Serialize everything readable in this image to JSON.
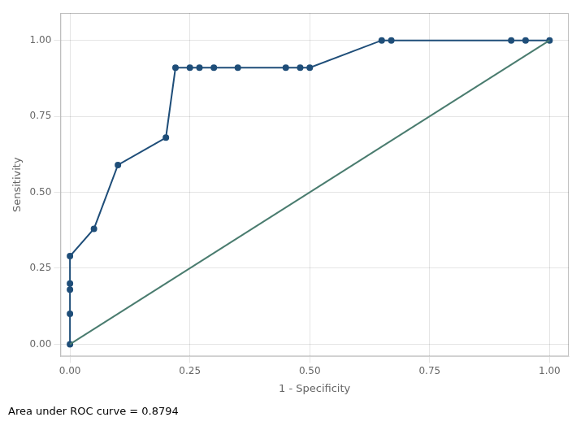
{
  "chart_data": {
    "type": "line",
    "x_label": "1 - Specificity",
    "y_label": "Sensitivity",
    "annotation": "Area under ROC curve = 0.8794",
    "series": [
      {
        "color": "#4a7c6f",
        "x": [
          0.0,
          1.0
        ],
        "values": [
          0.0,
          1.0
        ]
      },
      {
        "color": "#1f4e79",
        "marker": "circle",
        "x": [
          0.0,
          0.0,
          0.0,
          0.0,
          0.0,
          0.05,
          0.1,
          0.2,
          0.22,
          0.25,
          0.27,
          0.3,
          0.35,
          0.45,
          0.48,
          0.5,
          0.65,
          0.67,
          0.92,
          0.95,
          1.0
        ],
        "values": [
          0.0,
          0.1,
          0.18,
          0.2,
          0.29,
          0.38,
          0.59,
          0.68,
          0.91,
          0.91,
          0.91,
          0.91,
          0.91,
          0.91,
          0.91,
          0.91,
          1.0,
          1.0,
          1.0,
          1.0,
          1.0
        ]
      }
    ],
    "xlim": [
      -0.02,
      1.04
    ],
    "ylim": [
      -0.04,
      1.09
    ],
    "xticks": [
      {
        "value": 0,
        "label": "0.00"
      },
      0.25,
      {
        "value": 0.5,
        "label": "0.50"
      },
      0.75,
      {
        "value": 1,
        "label": "1.00"
      }
    ],
    "yticks": [
      {
        "value": 0,
        "label": "0.00"
      },
      0.25,
      {
        "value": 0.5,
        "label": "0.50"
      },
      0.75,
      {
        "value": 1,
        "label": "1.00"
      }
    ],
    "grid": true
  }
}
